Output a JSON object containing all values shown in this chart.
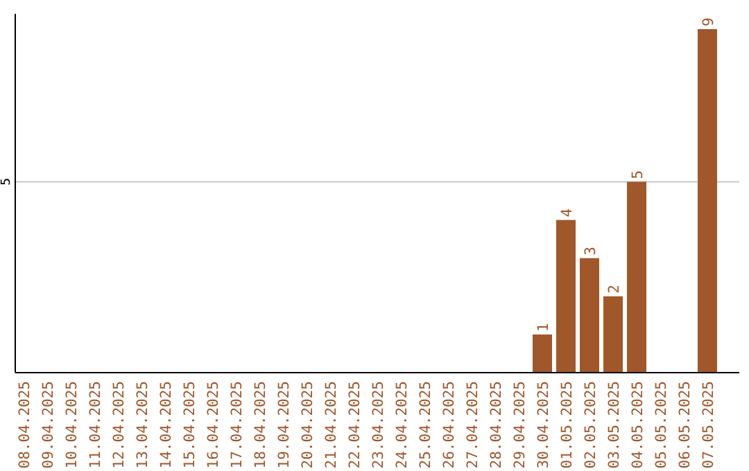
{
  "chart_data": {
    "type": "bar",
    "categories": [
      "08.04.2025",
      "09.04.2025",
      "10.04.2025",
      "11.04.2025",
      "12.04.2025",
      "13.04.2025",
      "14.04.2025",
      "15.04.2025",
      "16.04.2025",
      "17.04.2025",
      "18.04.2025",
      "19.04.2025",
      "20.04.2025",
      "21.04.2025",
      "22.04.2025",
      "23.04.2025",
      "24.04.2025",
      "25.04.2025",
      "26.04.2025",
      "27.04.2025",
      "28.04.2025",
      "29.04.2025",
      "30.04.2025",
      "01.05.2025",
      "02.05.2025",
      "03.05.2025",
      "04.05.2025",
      "05.05.2025",
      "06.05.2025",
      "07.05.2025"
    ],
    "values": [
      null,
      null,
      null,
      null,
      null,
      null,
      null,
      null,
      null,
      null,
      null,
      null,
      null,
      null,
      null,
      null,
      null,
      null,
      null,
      null,
      null,
      null,
      1,
      4,
      3,
      2,
      5,
      null,
      null,
      9
    ],
    "value_labels": [
      null,
      null,
      null,
      null,
      null,
      null,
      null,
      null,
      null,
      null,
      null,
      null,
      null,
      null,
      null,
      null,
      null,
      null,
      null,
      null,
      null,
      null,
      "1",
      "4",
      "3",
      "2",
      "5",
      null,
      null,
      "9"
    ],
    "color": "#a0572a",
    "ylim": [
      0,
      9.4
    ],
    "yticks": [
      5
    ],
    "grid": "y"
  }
}
